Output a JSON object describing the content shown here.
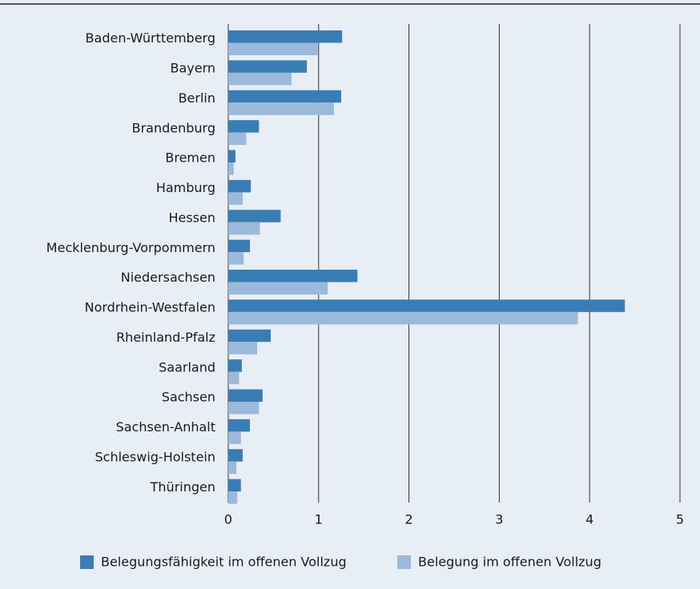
{
  "chart_data": {
    "type": "barh",
    "categories": [
      "Baden-Württemberg",
      "Bayern",
      "Berlin",
      "Brandenburg",
      "Bremen",
      "Hamburg",
      "Hessen",
      "Mecklenburg-Vorpommern",
      "Niedersachsen",
      "Nordrhein-Westfalen",
      "Rheinland-Pfalz",
      "Saarland",
      "Sachsen",
      "Sachsen-Anhalt",
      "Schleswig-Holstein",
      "Thüringen"
    ],
    "series": [
      {
        "name": "Belegungsfähigkeit im offenen Vollzug",
        "color": "#3a7db5",
        "values": [
          1.26,
          0.87,
          1.25,
          0.34,
          0.08,
          0.25,
          0.58,
          0.24,
          1.43,
          4.39,
          0.47,
          0.15,
          0.38,
          0.24,
          0.16,
          0.14
        ]
      },
      {
        "name": "Belegung im offenen Vollzug",
        "color": "#9bb9da",
        "values": [
          0.99,
          0.7,
          1.17,
          0.2,
          0.06,
          0.16,
          0.35,
          0.17,
          1.1,
          3.87,
          0.32,
          0.12,
          0.34,
          0.14,
          0.09,
          0.1
        ]
      }
    ],
    "xlim": [
      0,
      5
    ],
    "xticks": [
      0,
      1,
      2,
      3,
      4,
      5
    ],
    "grid": true
  }
}
